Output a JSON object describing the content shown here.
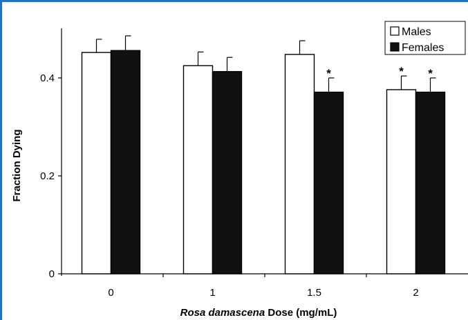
{
  "chart_data": {
    "type": "bar",
    "categories": [
      "0",
      "1",
      "1.5",
      "2"
    ],
    "series": [
      {
        "name": "Males",
        "values": [
          0.452,
          0.425,
          0.448,
          0.376
        ],
        "errors": [
          0.027,
          0.028,
          0.028,
          0.028
        ],
        "color": "#ffffff"
      },
      {
        "name": "Females",
        "values": [
          0.456,
          0.413,
          0.371,
          0.371
        ],
        "errors": [
          0.03,
          0.029,
          0.029,
          0.029
        ],
        "color": "#111111"
      }
    ],
    "significance": [
      {
        "category": "1.5",
        "series": "Females",
        "label": "*"
      },
      {
        "category": "2",
        "series": "Males",
        "label": "*"
      },
      {
        "category": "2",
        "series": "Females",
        "label": "*"
      }
    ],
    "xlabel_italic": "Rosa damascena",
    "xlabel_rest": " Dose (mg/mL)",
    "ylabel": "Fraction Dying",
    "ylim": [
      0,
      0.5
    ],
    "yticks": [
      0,
      0.2,
      0.4
    ],
    "ytick_labels": [
      "0",
      "0.2",
      "0.4"
    ],
    "legend_position": "top-right",
    "grid": false
  }
}
